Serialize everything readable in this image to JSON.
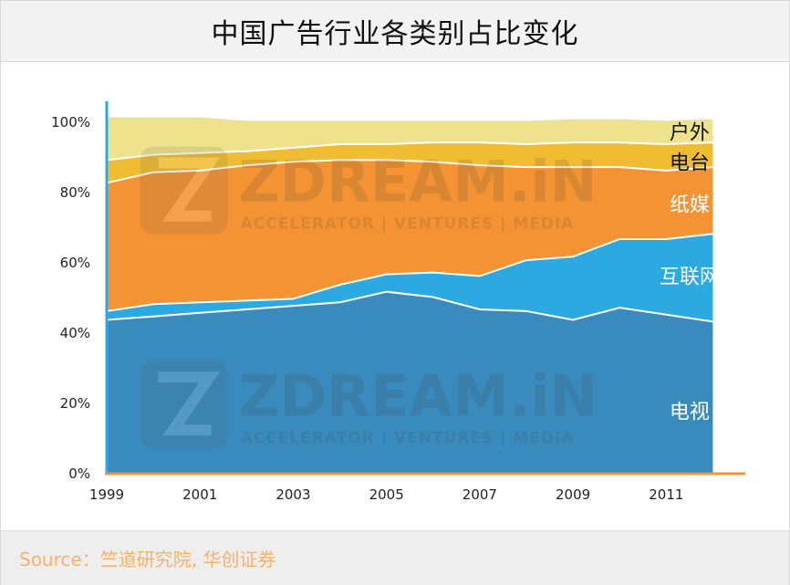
{
  "page": {
    "title": "中国广告行业各类别占比变化",
    "source": "Source：竺道研究院, 华创证券"
  },
  "colors": {
    "tv": "#3a8bbd",
    "internet": "#2ca9e1",
    "print": "#f39333",
    "radio": "#f0bc32",
    "outdoor": "#eee38c",
    "separator": "#ffffff",
    "axis": "#2ca9e1",
    "baseline": "#f39333"
  },
  "chart_data": {
    "type": "area",
    "stacked": true,
    "title": "中国广告行业各类别占比变化",
    "xlabel": "",
    "ylabel": "",
    "x": [
      1999,
      2000,
      2001,
      2002,
      2003,
      2004,
      2005,
      2006,
      2007,
      2008,
      2009,
      2010,
      2011,
      2012
    ],
    "xlim": [
      1999,
      2012.5
    ],
    "ylim": [
      0,
      100
    ],
    "x_ticks": [
      {
        "value": 1999,
        "label": "1999"
      },
      {
        "value": 2001,
        "label": "2001"
      },
      {
        "value": 2003,
        "label": "2003"
      },
      {
        "value": 2005,
        "label": "2005"
      },
      {
        "value": 2007,
        "label": "2007"
      },
      {
        "value": 2009,
        "label": "2009"
      },
      {
        "value": 2011,
        "label": "2011"
      }
    ],
    "y_ticks": [
      {
        "value": 0,
        "label": "0%"
      },
      {
        "value": 20,
        "label": "20%"
      },
      {
        "value": 40,
        "label": "40%"
      },
      {
        "value": 60,
        "label": "60%"
      },
      {
        "value": 80,
        "label": "80%"
      },
      {
        "value": 100,
        "label": "100%"
      }
    ],
    "series": [
      {
        "key": "tv",
        "name": "电视",
        "label_anchor": [
          2011.5,
          17.5
        ],
        "values": [
          43.5,
          44.5,
          45.5,
          46.5,
          47.5,
          48.5,
          51.5,
          50,
          46.5,
          46,
          43.5,
          47,
          45,
          43
        ]
      },
      {
        "key": "internet",
        "name": "互联网",
        "label_anchor": [
          2011.5,
          56
        ],
        "values": [
          2.5,
          3.5,
          3,
          2.5,
          2,
          5,
          5,
          7,
          9.5,
          14.5,
          18,
          19.5,
          21.5,
          25
        ]
      },
      {
        "key": "print",
        "name": "纸媒",
        "label_anchor": [
          2011.5,
          76.5
        ],
        "values": [
          36.5,
          37.5,
          37.5,
          38.5,
          39,
          35.5,
          32.5,
          31.5,
          31.5,
          26.5,
          25.5,
          20.5,
          19.5,
          19
        ]
      },
      {
        "key": "radio",
        "name": "电台",
        "label_anchor": [
          2011.5,
          88.5
        ],
        "values": [
          6.5,
          5,
          5,
          4,
          4,
          4.5,
          4.5,
          5.5,
          6.5,
          6.5,
          7,
          7,
          7.5,
          7
        ]
      },
      {
        "key": "outdoor",
        "name": "户外",
        "label_anchor": [
          2011.5,
          97
        ],
        "values": [
          12,
          10.5,
          10,
          8.5,
          7.5,
          6.5,
          6.5,
          6,
          6,
          6.5,
          6.5,
          6.5,
          6.5,
          6.5
        ]
      }
    ],
    "watermark": {
      "text": "ZDREAM.iN",
      "subtext": "ACCELERATOR | VENTURES | MEDIA",
      "anchors": [
        [
          2005,
          83
        ],
        [
          2005,
          22
        ]
      ]
    },
    "legend": "inline-right",
    "grid": false
  }
}
